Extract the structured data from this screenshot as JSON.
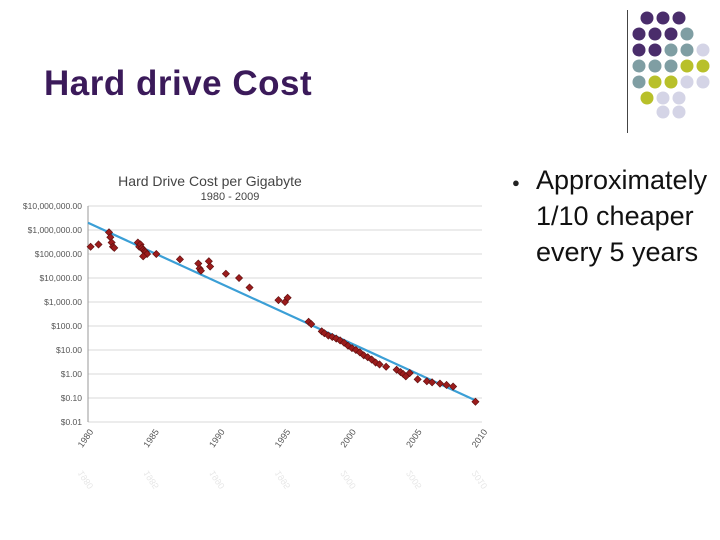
{
  "slide": {
    "title": "Hard drive Cost",
    "bullets": [
      {
        "text": "Approximately 1/10 cheaper every 5 years"
      }
    ],
    "decor_dot_colors": [
      "#4a2d6b",
      "#7f9ea3",
      "#b8c02a",
      "#d4d4e6"
    ]
  },
  "chart_data": {
    "type": "scatter",
    "title": "Hard Drive Cost per Gigabyte",
    "subtitle": "1980 - 2009",
    "xlabel": "",
    "ylabel": "",
    "y_scale": "log",
    "ylim": [
      0.01,
      10000000
    ],
    "xlim": [
      1980,
      2010
    ],
    "x_ticks": [
      "1980",
      "1985",
      "1990",
      "1995",
      "2000",
      "2005",
      "2010"
    ],
    "y_ticks": [
      "$10,000,000.00",
      "$1,000,000.00",
      "$100,000.00",
      "$10,000.00",
      "$1,000.00",
      "$100.00",
      "$10.00",
      "$1.00",
      "$0.10",
      "$0.01"
    ],
    "trend_line": {
      "x": [
        1980,
        2009.5
      ],
      "y": [
        2000000,
        0.08
      ]
    },
    "points": {
      "x": [
        1980.2,
        1980.8,
        1981.6,
        1981.7,
        1981.8,
        1981.9,
        1982.0,
        1983.8,
        1983.9,
        1984.0,
        1984.1,
        1984.2,
        1984.3,
        1984.4,
        1984.5,
        1984.2,
        1985.2,
        1987.0,
        1988.4,
        1988.5,
        1988.6,
        1989.2,
        1989.3,
        1990.5,
        1991.5,
        1992.3,
        1994.5,
        1995.0,
        1995.2,
        1996.8,
        1997.0,
        1997.8,
        1998.0,
        1998.3,
        1998.6,
        1998.9,
        1999.2,
        1999.5,
        1999.8,
        2000.1,
        2000.4,
        2000.7,
        2001.0,
        2001.3,
        2001.6,
        2001.9,
        2002.2,
        2002.7,
        2003.5,
        2003.8,
        2004.0,
        2004.2,
        2004.5,
        2005.1,
        2005.8,
        2006.2,
        2006.8,
        2007.3,
        2007.8,
        2009.5
      ],
      "y": [
        200000,
        250000,
        800000,
        500000,
        300000,
        200000,
        180000,
        300000,
        200000,
        250000,
        180000,
        150000,
        130000,
        120000,
        100000,
        80000,
        100000,
        60000,
        40000,
        25000,
        20000,
        50000,
        30000,
        15000,
        10000,
        4000,
        1200,
        1000,
        1500,
        150,
        120,
        60,
        50,
        40,
        35,
        30,
        25,
        20,
        15,
        12,
        10,
        8,
        6,
        5,
        4,
        3,
        2.5,
        2,
        1.5,
        1.2,
        1.0,
        0.8,
        1.1,
        0.6,
        0.5,
        0.45,
        0.4,
        0.35,
        0.3,
        0.07
      ]
    }
  }
}
